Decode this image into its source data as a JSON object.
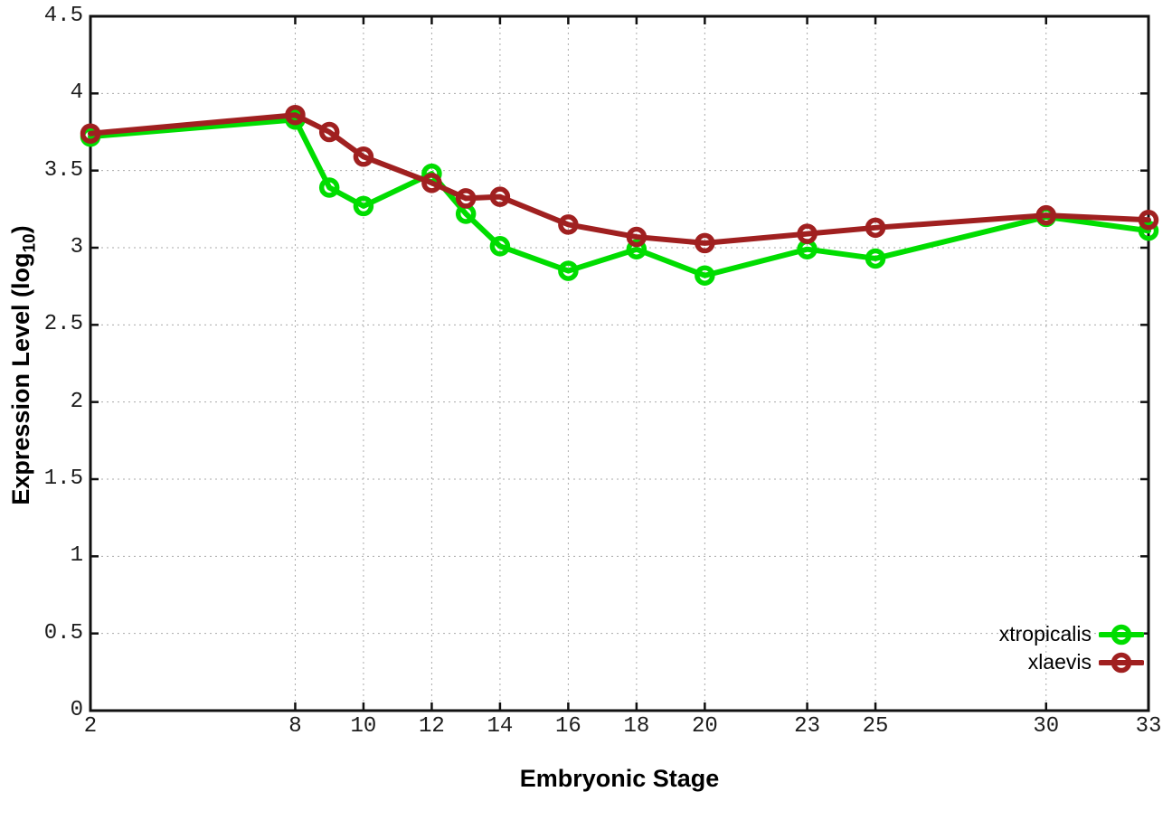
{
  "figure": {
    "xlabel": "Embryonic Stage",
    "ylabel_prefix": "Expression Level (log",
    "ylabel_sub": "10",
    "ylabel_suffix": ")"
  },
  "legend": {
    "position": "bottom-right",
    "items": [
      {
        "label": "xtropicalis",
        "color": "#00dd00"
      },
      {
        "label": "xlaevis",
        "color": "#a02020"
      }
    ]
  },
  "chart_data": {
    "type": "line",
    "title": "",
    "xlabel": "Embryonic Stage",
    "ylabel": "Expression Level (log10)",
    "x": [
      2,
      8,
      9,
      10,
      12,
      13,
      14,
      16,
      18,
      20,
      23,
      25,
      30,
      33
    ],
    "series": [
      {
        "name": "xtropicalis",
        "color": "#00dd00",
        "values": [
          3.72,
          3.83,
          3.39,
          3.27,
          3.48,
          3.22,
          3.01,
          2.85,
          2.99,
          2.82,
          2.99,
          2.93,
          3.2,
          3.11
        ]
      },
      {
        "name": "xlaevis",
        "color": "#a02020",
        "values": [
          3.74,
          3.86,
          3.75,
          3.59,
          3.42,
          3.32,
          3.33,
          3.15,
          3.07,
          3.03,
          3.09,
          3.13,
          3.21,
          3.18
        ]
      }
    ],
    "xlim": [
      2,
      33
    ],
    "ylim": [
      0,
      4.5
    ],
    "xticks": [
      2,
      8,
      10,
      12,
      14,
      16,
      18,
      20,
      23,
      25,
      30,
      33
    ],
    "xtick_labels": [
      "2",
      "8",
      "10",
      "12",
      "14",
      "16",
      "18",
      "20",
      "23",
      "25",
      "30",
      "33"
    ],
    "yticks": [
      0,
      0.5,
      1,
      1.5,
      2,
      2.5,
      3,
      3.5,
      4,
      4.5
    ],
    "ytick_labels": [
      "0",
      "0.5",
      "1",
      "1.5",
      "2",
      "2.5",
      "3",
      "3.5",
      "4",
      "4.5"
    ],
    "grid": true,
    "grid_color": "#aaaaaa",
    "axis_color": "#111111",
    "marker": "open-circle",
    "line_width": 6,
    "marker_radius": 8.5,
    "marker_stroke": 5.5,
    "legend_position": "bottom-right"
  }
}
